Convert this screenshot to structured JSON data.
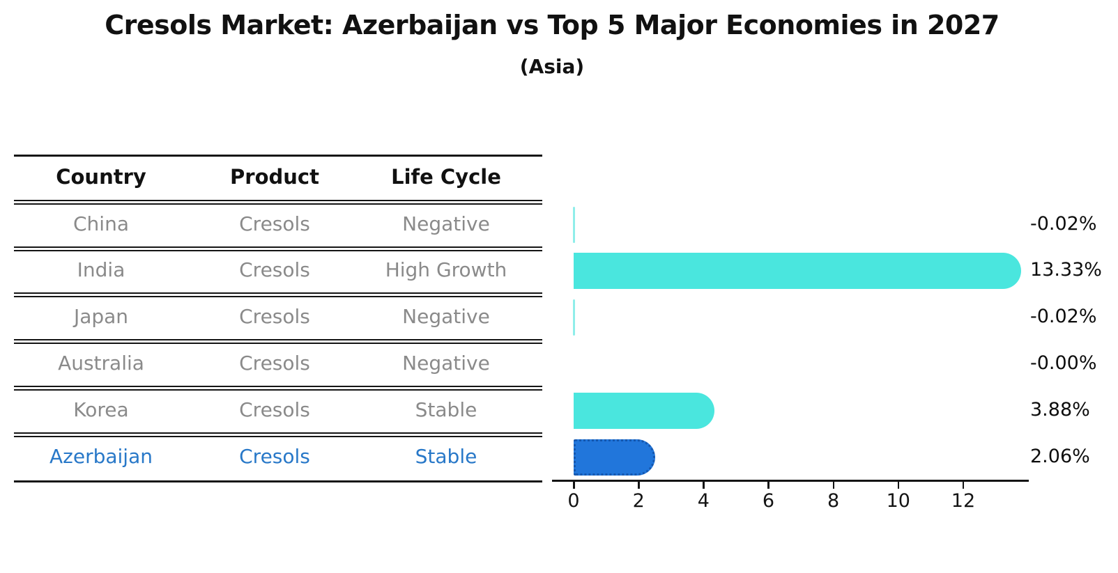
{
  "title": "Cresols Market: Azerbaijan vs Top 5 Major Economies in 2027",
  "subtitle": "(Asia)",
  "table": {
    "headers": [
      "Country",
      "Product",
      "Life Cycle"
    ],
    "rows": [
      {
        "country": "China",
        "product": "Cresols",
        "life_cycle": "Negative",
        "highlighted": false
      },
      {
        "country": "India",
        "product": "Cresols",
        "life_cycle": "High Growth",
        "highlighted": false
      },
      {
        "country": "Japan",
        "product": "Cresols",
        "life_cycle": "Negative",
        "highlighted": false
      },
      {
        "country": "Australia",
        "product": "Cresols",
        "life_cycle": "Negative",
        "highlighted": false
      },
      {
        "country": "Korea",
        "product": "Cresols",
        "life_cycle": "Stable",
        "highlighted": false
      },
      {
        "country": "Azerbaijan",
        "product": "Cresols",
        "life_cycle": "Stable",
        "highlighted": true
      }
    ]
  },
  "chart_data": {
    "type": "bar",
    "orientation": "horizontal",
    "title": "Cresols Market: Azerbaijan vs Top 5 Major Economies in 2027",
    "subtitle": "(Asia)",
    "categories": [
      "China",
      "India",
      "Japan",
      "Australia",
      "Korea",
      "Azerbaijan"
    ],
    "values": [
      -0.02,
      13.33,
      -0.02,
      0.0,
      3.88,
      2.06
    ],
    "value_labels": [
      "-0.02%",
      "13.33%",
      "-0.02%",
      "-0.00%",
      "3.88%",
      "2.06%"
    ],
    "x_ticks": [
      "0",
      "2",
      "4",
      "6",
      "8",
      "10",
      "12"
    ],
    "xlim": [
      0,
      14
    ],
    "grid": false,
    "legend": false,
    "bar_color": "#4ae6de",
    "tiny_bar_color": "#8feeea",
    "highlight_bar_color": "#2176db",
    "highlight_border_color": "#1557ae",
    "highlight_index": 5
  },
  "colors": {
    "title_text": "#111111",
    "table_header_text": "#111111",
    "table_body_text": "#8a8a8a",
    "highlight_text": "#2878c8",
    "axis": "#141414",
    "background": "#ffffff"
  }
}
